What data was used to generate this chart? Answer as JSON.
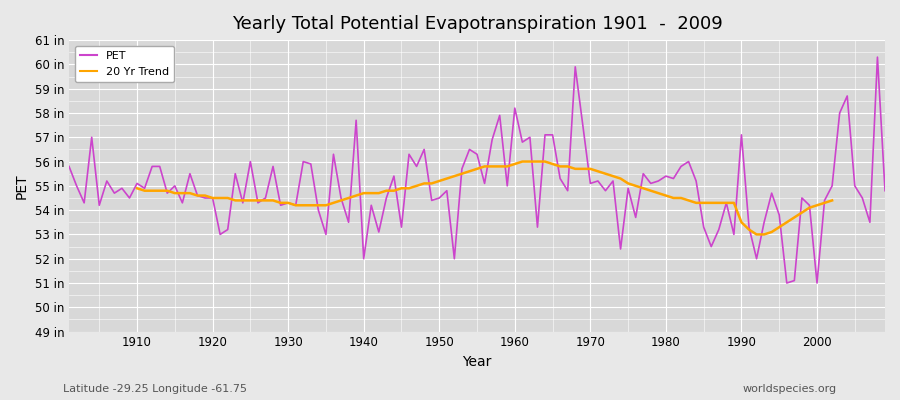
{
  "title": "Yearly Total Potential Evapotranspiration 1901  -  2009",
  "xlabel": "Year",
  "ylabel": "PET",
  "subtitle_left": "Latitude -29.25 Longitude -61.75",
  "subtitle_right": "worldspecies.org",
  "pet_color": "#cc44cc",
  "trend_color": "#ffa500",
  "bg_color": "#e8e8e8",
  "plot_bg_color": "#d8d8d8",
  "grid_color": "#ffffff",
  "ylim": [
    49,
    61
  ],
  "yticks": [
    49,
    50,
    51,
    52,
    53,
    54,
    55,
    56,
    57,
    58,
    59,
    60,
    61
  ],
  "years": [
    1901,
    1902,
    1903,
    1904,
    1905,
    1906,
    1907,
    1908,
    1909,
    1910,
    1911,
    1912,
    1913,
    1914,
    1915,
    1916,
    1917,
    1918,
    1919,
    1920,
    1921,
    1922,
    1923,
    1924,
    1925,
    1926,
    1927,
    1928,
    1929,
    1930,
    1931,
    1932,
    1933,
    1934,
    1935,
    1936,
    1937,
    1938,
    1939,
    1940,
    1941,
    1942,
    1943,
    1944,
    1945,
    1946,
    1947,
    1948,
    1949,
    1950,
    1951,
    1952,
    1953,
    1954,
    1955,
    1956,
    1957,
    1958,
    1959,
    1960,
    1961,
    1962,
    1963,
    1964,
    1965,
    1966,
    1967,
    1968,
    1969,
    1970,
    1971,
    1972,
    1973,
    1974,
    1975,
    1976,
    1977,
    1978,
    1979,
    1980,
    1981,
    1982,
    1983,
    1984,
    1985,
    1986,
    1987,
    1988,
    1989,
    1990,
    1991,
    1992,
    1993,
    1994,
    1995,
    1996,
    1997,
    1998,
    1999,
    2000,
    2001,
    2002,
    2003,
    2004,
    2005,
    2006,
    2007,
    2008,
    2009
  ],
  "pet": [
    55.8,
    55.0,
    54.3,
    57.0,
    54.2,
    55.2,
    54.7,
    54.9,
    54.5,
    55.1,
    54.9,
    55.8,
    55.8,
    54.7,
    55.0,
    54.3,
    55.5,
    54.6,
    54.5,
    54.5,
    53.0,
    53.2,
    55.5,
    54.3,
    56.0,
    54.3,
    54.5,
    55.8,
    54.2,
    54.3,
    54.2,
    56.0,
    55.9,
    54.0,
    53.0,
    56.3,
    54.5,
    53.5,
    57.7,
    52.0,
    54.2,
    53.1,
    54.5,
    55.4,
    53.3,
    56.3,
    55.8,
    56.5,
    54.4,
    54.5,
    54.8,
    52.0,
    55.7,
    56.5,
    56.3,
    55.1,
    56.9,
    57.9,
    55.0,
    58.2,
    56.8,
    57.0,
    53.3,
    57.1,
    57.1,
    55.3,
    54.8,
    59.9,
    57.5,
    55.1,
    55.2,
    54.8,
    55.2,
    52.4,
    54.9,
    53.7,
    55.5,
    55.1,
    55.2,
    55.4,
    55.3,
    55.8,
    56.0,
    55.2,
    53.3,
    52.5,
    53.2,
    54.3,
    53.0,
    57.1,
    53.3,
    52.0,
    53.5,
    54.7,
    53.8,
    51.0,
    51.1,
    54.5,
    54.2,
    51.0,
    54.4,
    55.0,
    58.0,
    58.7,
    55.0,
    54.5,
    53.5,
    60.3,
    54.8
  ],
  "trend": [
    null,
    null,
    null,
    null,
    null,
    null,
    null,
    null,
    null,
    54.9,
    54.8,
    54.8,
    54.8,
    54.8,
    54.7,
    54.7,
    54.7,
    54.6,
    54.6,
    54.5,
    54.5,
    54.5,
    54.4,
    54.4,
    54.4,
    54.4,
    54.4,
    54.4,
    54.3,
    54.3,
    54.2,
    54.2,
    54.2,
    54.2,
    54.2,
    54.3,
    54.4,
    54.5,
    54.6,
    54.7,
    54.7,
    54.7,
    54.8,
    54.8,
    54.9,
    54.9,
    55.0,
    55.1,
    55.1,
    55.2,
    55.3,
    55.4,
    55.5,
    55.6,
    55.7,
    55.8,
    55.8,
    55.8,
    55.8,
    55.9,
    56.0,
    56.0,
    56.0,
    56.0,
    55.9,
    55.8,
    55.8,
    55.7,
    55.7,
    55.7,
    55.6,
    55.5,
    55.4,
    55.3,
    55.1,
    55.0,
    54.9,
    54.8,
    54.7,
    54.6,
    54.5,
    54.5,
    54.4,
    54.3,
    54.3,
    54.3,
    54.3,
    54.3,
    54.3,
    53.5,
    53.2,
    53.0,
    53.0,
    53.1,
    53.3,
    53.5,
    53.7,
    53.9,
    54.1,
    54.2,
    54.3,
    54.4,
    null,
    null,
    null,
    null,
    null,
    null,
    null,
    null,
    null
  ]
}
